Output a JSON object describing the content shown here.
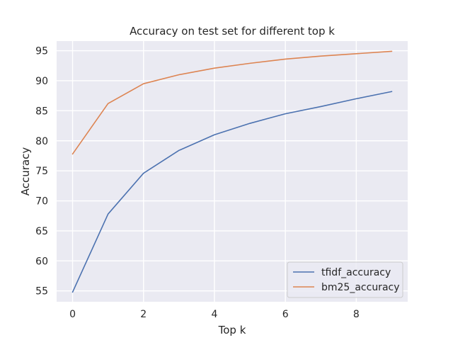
{
  "chart_data": {
    "type": "line",
    "title": "Accuracy on test set for different top k",
    "xlabel": "Top k",
    "ylabel": "Accuracy",
    "x": [
      0,
      1,
      2,
      3,
      4,
      5,
      6,
      7,
      8,
      9
    ],
    "xlim": [
      -0.45,
      9.45
    ],
    "ylim": [
      53.2,
      96.6
    ],
    "xticks": [
      0,
      2,
      4,
      6,
      8
    ],
    "yticks": [
      55,
      60,
      65,
      70,
      75,
      80,
      85,
      90,
      95
    ],
    "grid": true,
    "legend": "lower-right",
    "background": "#eaeaf2",
    "series": [
      {
        "name": "tfidf_accuracy",
        "color": "#4c72b0",
        "values": [
          54.8,
          67.8,
          74.6,
          78.4,
          81.0,
          82.9,
          84.5,
          85.7,
          87.0,
          88.2
        ]
      },
      {
        "name": "bm25_accuracy",
        "color": "#dd8452",
        "values": [
          77.8,
          86.2,
          89.5,
          91.0,
          92.1,
          92.9,
          93.6,
          94.1,
          94.5,
          94.9
        ]
      }
    ]
  }
}
